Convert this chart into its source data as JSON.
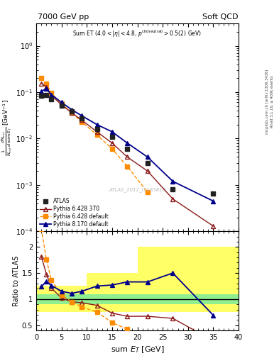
{
  "title_left": "7000 GeV pp",
  "title_right": "Soft QCD",
  "watermark": "ATLAS_2012_I1183818",
  "right_label_top": "Rivet 3.1.10, ≥ 400k events",
  "right_label_bot": "mcplots.cern.ch [arXiv:1306.3436]",
  "xlabel": "sum $E_T$ [GeV]",
  "ylabel_ratio": "Ratio to ATLAS",
  "ylim_main": [
    0.0001,
    3.0
  ],
  "ylim_ratio": [
    0.4,
    2.3
  ],
  "xlim": [
    0,
    40
  ],
  "atlas_x": [
    1,
    2,
    3,
    5,
    7,
    9,
    12,
    15,
    18,
    22,
    27,
    35
  ],
  "atlas_y": [
    0.085,
    0.088,
    0.07,
    0.052,
    0.038,
    0.027,
    0.016,
    0.011,
    0.006,
    0.003,
    0.0008,
    0.00065
  ],
  "p628_370_x": [
    1,
    2,
    3,
    5,
    7,
    9,
    12,
    15,
    18,
    22,
    27,
    35
  ],
  "p628_370_y": [
    0.155,
    0.13,
    0.085,
    0.053,
    0.036,
    0.025,
    0.014,
    0.008,
    0.004,
    0.002,
    0.0005,
    0.00013
  ],
  "p628_def_x": [
    1,
    2,
    3,
    5,
    7,
    9,
    12,
    15,
    18,
    22
  ],
  "p628_def_y": [
    0.2,
    0.155,
    0.095,
    0.056,
    0.036,
    0.023,
    0.012,
    0.006,
    0.0025,
    0.0007
  ],
  "p8170_x": [
    1,
    2,
    3,
    5,
    7,
    9,
    12,
    15,
    18,
    22,
    27,
    35
  ],
  "p8170_y": [
    0.105,
    0.118,
    0.088,
    0.06,
    0.042,
    0.031,
    0.02,
    0.014,
    0.008,
    0.004,
    0.0012,
    0.00045
  ],
  "ratio_x": [
    1,
    2,
    3,
    5,
    7,
    9,
    12,
    15,
    18,
    22,
    27,
    35
  ],
  "r628_370_y": [
    1.82,
    1.48,
    1.21,
    1.02,
    0.95,
    0.93,
    0.88,
    0.73,
    0.67,
    0.67,
    0.63,
    0.2
  ],
  "r628_def_x": [
    1,
    2,
    3,
    5,
    7,
    9,
    12,
    15,
    18,
    22
  ],
  "r628_def_y": [
    2.35,
    1.76,
    1.36,
    1.08,
    0.95,
    0.85,
    0.75,
    0.55,
    0.42,
    0.23
  ],
  "r8170_y": [
    1.24,
    1.34,
    1.26,
    1.15,
    1.11,
    1.15,
    1.25,
    1.27,
    1.33,
    1.33,
    1.5,
    0.69
  ],
  "yband_edges": [
    0,
    1,
    3,
    7.5,
    10,
    20,
    25,
    40
  ],
  "yband_ylo": [
    0.75,
    0.75,
    0.75,
    0.75,
    0.75,
    0.75,
    0.75
  ],
  "yband_yhi": [
    1.25,
    1.25,
    1.25,
    1.25,
    1.5,
    2.0,
    2.0
  ],
  "gband_ylo": [
    0.9,
    0.9,
    0.9,
    0.9,
    0.9,
    0.9,
    0.9
  ],
  "gband_yhi": [
    1.1,
    1.1,
    1.1,
    1.1,
    1.1,
    1.1,
    1.1
  ],
  "col_atlas": "#222222",
  "col_628_370": "#8B1A1A",
  "col_628_def": "#FF8C00",
  "col_8170": "#00008B",
  "col_green": "#90EE90",
  "col_yellow": "#FFFF66"
}
